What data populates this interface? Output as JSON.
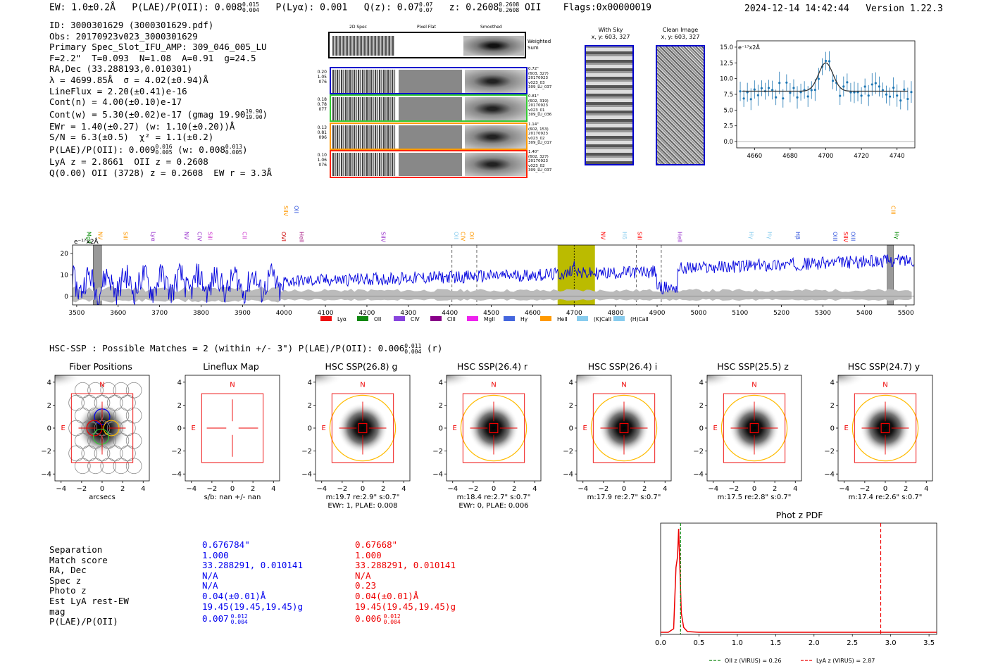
{
  "header": {
    "ew": "EW: 1.0±0.2Å",
    "plae": "P(LAE)/P(OII): 0.008",
    "plae_hi": "0.015",
    "plae_lo": "0.004",
    "plya": "P(Lyα): 0.001",
    "qz": "Q(z): 0.07",
    "qz_hi": "0.07",
    "qz_lo": "0.07",
    "z": "z: 0.2608",
    "z_hi": "0.2608",
    "z_lo": "0.2608",
    "z_line": "OII",
    "flags": "Flags:0x00000019",
    "timestamp": "2024-12-14 14:42:44",
    "version": "Version 1.22.3"
  },
  "info": {
    "id": "ID: 3000301629 (3000301629.pdf)",
    "obs": "Obs: 20170923v023_3000301629",
    "primary": "Primary Spec_Slot_IFU_AMP: 309_046_005_LU",
    "fiber": "F=2.2\"  T=0.093  N=1.08  A=0.91  g=24.5",
    "radec": "RA,Dec (33.288193,0.010301)",
    "lambda": "λ = 4699.85Å  σ = 4.02(±0.94)Å",
    "lineflux": "LineFlux = 2.20(±0.41)e-16",
    "contn": "Cont(n) = 4.00(±0.10)e-17",
    "contw": "Cont(w) = 5.30(±0.02)e-17 (gmag 19.90",
    "contw_hi": "19.90",
    "contw_lo": "19.90",
    "ewr": "EWr = 1.40(±0.27) (w: 1.10(±0.20))Å",
    "sn": "S/N = 6.3(±0.5)  χ² = 1.1(±0.2)",
    "plae": "P(LAE)/P(OII): 0.009",
    "plae_hi": "0.016",
    "plae_lo": "0.005",
    "plae_w": "(w: 0.008",
    "plae_w_hi": "0.013",
    "plae_w_lo": "0.005",
    "lya": "LyA z = 2.8661  OII z = 0.2608",
    "q": "Q(0.00) OII (3728) z = 0.2608  EW r = 3.3Å"
  },
  "cutouts": {
    "col1": "2D Spec",
    "col2": "Pixel Flat",
    "col3": "Smoothed",
    "weighted": "Weighted Sum",
    "rows": [
      {
        "left": [
          "0.20",
          "1.05",
          "076"
        ],
        "right": [
          "0.72\"",
          "(603, 327)",
          "20170923",
          "v023_03",
          "309_LU_037"
        ],
        "color": "#0000cc"
      },
      {
        "left": [
          "0.18",
          "0.78",
          "077"
        ],
        "right": [
          "0.81\"",
          "(602, 319)",
          "20170923",
          "v023_01",
          "309_LU_036"
        ],
        "color": "#33cc33"
      },
      {
        "left": [
          "0.13",
          "0.81",
          "096"
        ],
        "right": [
          "1.14\"",
          "(602, 153)",
          "20170923",
          "v023_02",
          "309_LU_017"
        ],
        "color": "#ff9900"
      },
      {
        "left": [
          "0.10",
          "1.06",
          "076"
        ],
        "right": [
          "1.40\"",
          "(602, 327)",
          "20170923",
          "v023_02",
          "309_LU_037"
        ],
        "color": "#ff2200"
      }
    ]
  },
  "sky": {
    "with_sky_title": "With Sky",
    "with_sky_coords": "x, y: 603, 327",
    "clean_title": "Clean Image",
    "clean_coords": "x, y: 603, 327"
  },
  "zoom_plot": {
    "unit": "e⁻¹⁷x2Å",
    "yticks": [
      "15.0",
      "12.5",
      "10.0",
      "7.5",
      "5.0",
      "2.5",
      "0.0"
    ],
    "xticks": [
      "4660",
      "4680",
      "4700",
      "4720",
      "4740"
    ]
  },
  "spectrum": {
    "unit": "e⁻¹⁷x2Å",
    "yticks": [
      "20",
      "10",
      "0"
    ],
    "xticks": [
      "3500",
      "3600",
      "3700",
      "3800",
      "3900",
      "4000",
      "4100",
      "4200",
      "4300",
      "4400",
      "4500",
      "4600",
      "4700",
      "4800",
      "4900",
      "5000",
      "5100",
      "5200",
      "5300",
      "5400",
      "5500"
    ],
    "lines": [
      {
        "label": "MgII",
        "color": "#008800",
        "x": 3530,
        "row": 1
      },
      {
        "label": "NV",
        "color": "#ff9900",
        "x": 3557,
        "row": 1
      },
      {
        "label": "SiII",
        "color": "#ff9900",
        "x": 3618,
        "row": 1
      },
      {
        "label": "Lyα",
        "color": "#9933cc",
        "x": 3685,
        "row": 1
      },
      {
        "label": "NV",
        "color": "#9933cc",
        "x": 3765,
        "row": 1
      },
      {
        "label": "CIV",
        "color": "#9933cc",
        "x": 3797,
        "row": 1
      },
      {
        "label": "SiII",
        "color": "#cc33cc",
        "x": 3822,
        "row": 1
      },
      {
        "label": "CII",
        "color": "#cc33cc",
        "x": 3905,
        "row": 1
      },
      {
        "label": "OVI",
        "color": "#cc0000",
        "x": 4000,
        "row": 1
      },
      {
        "label": "SiIV",
        "color": "#ff9900",
        "x": 4005,
        "row": 0
      },
      {
        "label": "OII",
        "color": "#3355dd",
        "x": 4030,
        "row": 0
      },
      {
        "label": "HeII",
        "color": "#aa2288",
        "x": 4043,
        "row": 1
      },
      {
        "label": "SiIV",
        "color": "#9933cc",
        "x": 4240,
        "row": 1
      },
      {
        "label": "OII",
        "color": "#88ccee",
        "x": 4416,
        "row": 1
      },
      {
        "label": "CIV",
        "color": "#ff9900",
        "x": 4432,
        "row": 1
      },
      {
        "label": "OII",
        "color": "#ff9900",
        "x": 4453,
        "row": 1
      },
      {
        "label": "NV",
        "color": "#ff0000",
        "x": 4770,
        "row": 1
      },
      {
        "label": "Hδ",
        "color": "#88ccee",
        "x": 4822,
        "row": 1
      },
      {
        "label": "SiII",
        "color": "#ff0000",
        "x": 4858,
        "row": 1
      },
      {
        "label": "HeII",
        "color": "#9933cc",
        "x": 4955,
        "row": 1
      },
      {
        "label": "Hγ",
        "color": "#88ccee",
        "x": 5128,
        "row": 1
      },
      {
        "label": "Hγ",
        "color": "#88ccee",
        "x": 5172,
        "row": 1
      },
      {
        "label": "Hβ",
        "color": "#3355dd",
        "x": 5240,
        "row": 1
      },
      {
        "label": "OIII",
        "color": "#3355dd",
        "x": 5330,
        "row": 1
      },
      {
        "label": "SiIV",
        "color": "#ff0000",
        "x": 5355,
        "row": 1
      },
      {
        "label": "OIII",
        "color": "#3355dd",
        "x": 5373,
        "row": 1
      },
      {
        "label": "CIII",
        "color": "#ff9900",
        "x": 5470,
        "row": 0
      },
      {
        "label": "Hγ",
        "color": "#008800",
        "x": 5478,
        "row": 1
      }
    ],
    "legend": [
      {
        "label": "Lyα",
        "color": "#ee1111"
      },
      {
        "label": "OII",
        "color": "#118811"
      },
      {
        "label": "CIV",
        "color": "#8844dd"
      },
      {
        "label": "CIII",
        "color": "#880088"
      },
      {
        "label": "MgII",
        "color": "#ee22ee"
      },
      {
        "label": "Hγ",
        "color": "#4466dd"
      },
      {
        "label": "HeII",
        "color": "#ff9900"
      },
      {
        "label": "(K)CaII",
        "color": "#88ccee"
      },
      {
        "label": "(H)CaII",
        "color": "#88ccee"
      }
    ]
  },
  "hsc": {
    "summary": "HSC-SSP : Possible Matches = 2 (within +/- 3\")  P(LAE)/P(OII): 0.006",
    "summary_hi": "0.011",
    "summary_lo": "0.004",
    "summary_tail": "(r)",
    "panels": [
      {
        "title": "Fiber Positions",
        "xlabel": "arcsecs",
        "sub": ""
      },
      {
        "title": "Lineflux Map",
        "xlabel": "s/b: nan +/- nan",
        "sub": ""
      },
      {
        "title": "HSC SSP(26.8) g",
        "xlabel": "m:19.7  re:2.9\"  s:0.7\"",
        "sub": "EWr: 1, PLAE: 0.008"
      },
      {
        "title": "HSC SSP(26.4) r",
        "xlabel": "m:18.4  re:2.7\"  s:0.7\"",
        "sub": "EWr: 0, PLAE: 0.006"
      },
      {
        "title": "HSC SSP(26.4) i",
        "xlabel": "m:17.9  re:2.7\"  s:0.7\"",
        "sub": ""
      },
      {
        "title": "HSC SSP(25.5) z",
        "xlabel": "m:17.5  re:2.8\"  s:0.7\"",
        "sub": ""
      },
      {
        "title": "HSC SSP(24.7) y",
        "xlabel": "m:17.4  re:2.6\"  s:0.7\"",
        "sub": ""
      }
    ],
    "yticks": [
      "4",
      "2",
      "0",
      "−2",
      "−4"
    ],
    "xticks": [
      "−4",
      "−2",
      "0",
      "2",
      "4"
    ],
    "north": "N",
    "east": "E"
  },
  "matches": {
    "labels": [
      "Separation",
      "Match score",
      "RA, Dec",
      "Spec z",
      "Photo z",
      "Est LyA rest-EW",
      "mag",
      "P(LAE)/P(OII)"
    ],
    "blue": [
      "0.676784\"",
      "1.000",
      "33.288291, 0.010141",
      "N/A",
      "N/A",
      "0.04(±0.01)Å",
      "19.45(19.45,19.45)g",
      "0.007"
    ],
    "blue_hi": "0.012",
    "blue_lo": "0.004",
    "red": [
      "0.67668\"",
      "1.000",
      "33.288291, 0.010141",
      "N/A",
      "0.23",
      "0.04(±0.01)Å",
      "19.45(19.45,19.45)g",
      "0.006"
    ],
    "red_hi": "0.012",
    "red_lo": "0.004"
  },
  "photz": {
    "title": "Phot z PDF",
    "xticks": [
      "0.0",
      "0.5",
      "1.0",
      "1.5",
      "2.0",
      "2.5",
      "3.0",
      "3.5"
    ],
    "legend_oii": "OII z (VIRUS) = 0.26",
    "legend_lya": "LyA z (VIRUS) = 2.87",
    "oii_z": 0.26,
    "lya_z": 2.87
  },
  "colors": {
    "blue": "#0000ee",
    "red": "#ee0000",
    "olive": "#bbbb00",
    "orange": "#ffbb00"
  }
}
